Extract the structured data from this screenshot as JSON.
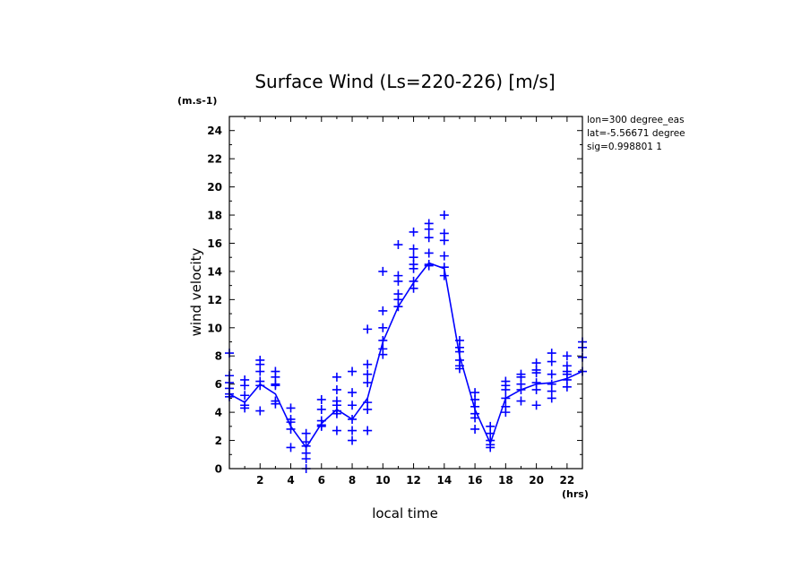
{
  "chart_data": {
    "type": "line",
    "title": "Surface Wind  (Ls=220-226) [m/s]",
    "xlabel": "local time",
    "ylabel": "wind velocity",
    "x_unit": "(hrs)",
    "y_unit": "(m.s-1)",
    "xlim": [
      0,
      23
    ],
    "ylim": [
      0,
      25
    ],
    "x_ticks": [
      2,
      4,
      6,
      8,
      10,
      12,
      14,
      16,
      18,
      20,
      22
    ],
    "y_ticks": [
      0,
      2,
      4,
      6,
      8,
      10,
      12,
      14,
      16,
      18,
      20,
      22,
      24
    ],
    "info_lines": [
      "lon=300 degree_eas",
      "lat=-5.56671 degree",
      "sig=0.998801 1"
    ],
    "color": "#0000ff",
    "series": [
      {
        "style": "line",
        "x": [
          0,
          1,
          2,
          3,
          4,
          5,
          6,
          7,
          8,
          9,
          10,
          11,
          12,
          13,
          14,
          15,
          16,
          17,
          18,
          19,
          20,
          21,
          22,
          23
        ],
        "y": [
          5.3,
          4.7,
          6.0,
          5.3,
          3.0,
          1.5,
          3.2,
          4.2,
          3.5,
          5.0,
          9.0,
          11.5,
          13.2,
          14.6,
          14.2,
          8.0,
          4.2,
          1.8,
          5.0,
          5.6,
          6.0,
          6.1,
          6.4,
          6.9
        ]
      },
      {
        "style": "markers",
        "marker": "+",
        "points": [
          [
            0,
            8.2
          ],
          [
            0,
            6.6
          ],
          [
            0,
            6.1
          ],
          [
            0,
            5.7
          ],
          [
            0,
            5.3
          ],
          [
            0,
            5.1
          ],
          [
            1,
            6.3
          ],
          [
            1,
            5.9
          ],
          [
            1,
            5.2
          ],
          [
            1,
            4.5
          ],
          [
            1,
            4.3
          ],
          [
            2,
            7.7
          ],
          [
            2,
            7.4
          ],
          [
            2,
            6.9
          ],
          [
            2,
            6.2
          ],
          [
            2,
            5.9
          ],
          [
            2,
            4.1
          ],
          [
            3,
            6.9
          ],
          [
            3,
            6.5
          ],
          [
            3,
            6.0
          ],
          [
            3,
            5.9
          ],
          [
            3,
            4.8
          ],
          [
            3,
            4.6
          ],
          [
            4,
            4.3
          ],
          [
            4,
            3.5
          ],
          [
            4,
            3.3
          ],
          [
            4,
            2.8
          ],
          [
            4,
            1.5
          ],
          [
            5,
            2.5
          ],
          [
            5,
            1.9
          ],
          [
            5,
            1.6
          ],
          [
            5,
            1.1
          ],
          [
            5,
            0.7
          ],
          [
            5,
            0.0
          ],
          [
            6,
            4.9
          ],
          [
            6,
            4.2
          ],
          [
            6,
            3.4
          ],
          [
            6,
            3.1
          ],
          [
            6,
            3.0
          ],
          [
            7,
            6.5
          ],
          [
            7,
            5.6
          ],
          [
            7,
            4.8
          ],
          [
            7,
            4.5
          ],
          [
            7,
            4.1
          ],
          [
            7,
            3.9
          ],
          [
            7,
            2.7
          ],
          [
            8,
            6.9
          ],
          [
            8,
            5.4
          ],
          [
            8,
            4.5
          ],
          [
            8,
            3.5
          ],
          [
            8,
            2.7
          ],
          [
            8,
            2.0
          ],
          [
            9,
            9.9
          ],
          [
            9,
            7.4
          ],
          [
            9,
            6.7
          ],
          [
            9,
            6.1
          ],
          [
            9,
            4.7
          ],
          [
            9,
            4.2
          ],
          [
            9,
            2.7
          ],
          [
            10,
            14.0
          ],
          [
            10,
            11.2
          ],
          [
            10,
            10.0
          ],
          [
            10,
            9.1
          ],
          [
            10,
            8.5
          ],
          [
            10,
            8.1
          ],
          [
            11,
            15.9
          ],
          [
            11,
            13.7
          ],
          [
            11,
            13.3
          ],
          [
            11,
            12.4
          ],
          [
            11,
            12.0
          ],
          [
            11,
            11.5
          ],
          [
            12,
            16.8
          ],
          [
            12,
            15.6
          ],
          [
            12,
            15.0
          ],
          [
            12,
            14.5
          ],
          [
            12,
            14.2
          ],
          [
            12,
            13.3
          ],
          [
            12,
            12.8
          ],
          [
            13,
            17.4
          ],
          [
            13,
            17.0
          ],
          [
            13,
            16.4
          ],
          [
            13,
            15.3
          ],
          [
            13,
            14.5
          ],
          [
            13,
            14.4
          ],
          [
            14,
            18.0
          ],
          [
            14,
            16.7
          ],
          [
            14,
            16.2
          ],
          [
            14,
            15.1
          ],
          [
            14,
            14.3
          ],
          [
            14,
            13.7
          ],
          [
            15,
            9.1
          ],
          [
            15,
            8.6
          ],
          [
            15,
            8.3
          ],
          [
            15,
            7.7
          ],
          [
            15,
            7.3
          ],
          [
            15,
            7.1
          ],
          [
            16,
            5.4
          ],
          [
            16,
            4.9
          ],
          [
            16,
            4.4
          ],
          [
            16,
            3.9
          ],
          [
            16,
            3.6
          ],
          [
            16,
            2.8
          ],
          [
            17,
            3.0
          ],
          [
            17,
            2.5
          ],
          [
            17,
            2.0
          ],
          [
            17,
            1.7
          ],
          [
            17,
            1.5
          ],
          [
            18,
            6.2
          ],
          [
            18,
            5.9
          ],
          [
            18,
            5.6
          ],
          [
            18,
            5.0
          ],
          [
            18,
            4.4
          ],
          [
            18,
            4.0
          ],
          [
            19,
            6.7
          ],
          [
            19,
            6.5
          ],
          [
            19,
            6.0
          ],
          [
            19,
            5.6
          ],
          [
            19,
            4.8
          ],
          [
            20,
            7.5
          ],
          [
            20,
            7.0
          ],
          [
            20,
            6.8
          ],
          [
            20,
            6.1
          ],
          [
            20,
            5.6
          ],
          [
            20,
            4.5
          ],
          [
            21,
            8.2
          ],
          [
            21,
            7.6
          ],
          [
            21,
            6.7
          ],
          [
            21,
            6.0
          ],
          [
            21,
            5.5
          ],
          [
            21,
            5.0
          ],
          [
            22,
            8.0
          ],
          [
            22,
            7.3
          ],
          [
            22,
            6.9
          ],
          [
            22,
            6.7
          ],
          [
            22,
            6.3
          ],
          [
            22,
            5.8
          ],
          [
            23,
            9.0
          ],
          [
            23,
            8.6
          ],
          [
            23,
            7.9
          ],
          [
            23,
            6.9
          ]
        ]
      }
    ]
  }
}
